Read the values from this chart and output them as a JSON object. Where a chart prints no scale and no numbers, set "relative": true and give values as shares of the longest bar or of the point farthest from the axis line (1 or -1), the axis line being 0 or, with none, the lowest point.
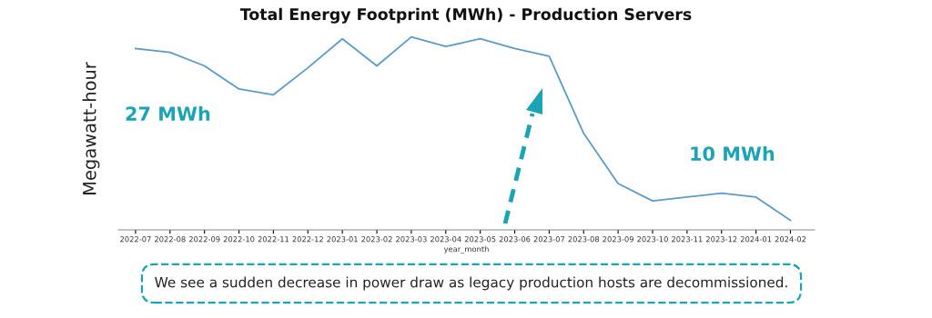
{
  "chart_data": {
    "type": "line",
    "title": "Total Energy Footprint (MWh) - Production Servers",
    "xlabel": "year_month",
    "ylabel": "Megawatt-hour",
    "categories": [
      "2022-07",
      "2022-08",
      "2022-09",
      "2022-10",
      "2022-11",
      "2022-12",
      "2023-01",
      "2023-02",
      "2023-03",
      "2023-04",
      "2023-05",
      "2023-06",
      "2023-07",
      "2023-08",
      "2023-09",
      "2023-10",
      "2023-11",
      "2023-12",
      "2024-01",
      "2024-02"
    ],
    "series": [
      {
        "color": "#5b9bc8",
        "values": [
          0.94,
          0.92,
          0.85,
          0.73,
          0.7,
          0.84,
          0.99,
          0.85,
          1,
          0.95,
          0.99,
          0.94,
          0.9,
          0.5,
          0.24,
          0.15,
          0.17,
          0.19,
          0.17,
          0.05
        ]
      }
    ],
    "relative": true,
    "grid": false,
    "legend": false,
    "marker": "none",
    "line_style": "solid",
    "annotations": [
      "27 MWh",
      "10 MWh",
      "We see a sudden decrease in power draw as legacy production hosts are decommissioned."
    ]
  }
}
